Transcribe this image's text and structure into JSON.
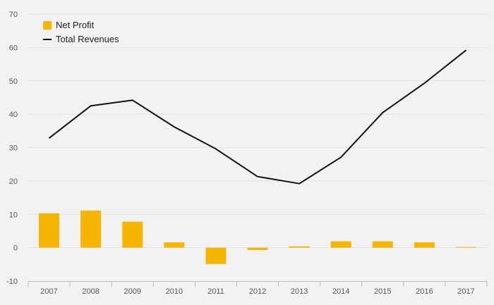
{
  "chart_data": {
    "type": "bar+line",
    "categories": [
      "2007",
      "2008",
      "2009",
      "2010",
      "2011",
      "2012",
      "2013",
      "2014",
      "2015",
      "2016",
      "2017"
    ],
    "series": [
      {
        "name": "Net Profit",
        "kind": "bar",
        "color": "#f7b500",
        "values": [
          10.3,
          11.1,
          7.8,
          1.6,
          -4.9,
          -0.7,
          0.4,
          1.9,
          1.9,
          1.6,
          0.2
        ]
      },
      {
        "name": "Total Revenues",
        "kind": "line",
        "color": "#111111",
        "values": [
          32.8,
          42.5,
          44.2,
          36.2,
          29.6,
          21.3,
          19.2,
          27.1,
          40.5,
          49.3,
          59.2
        ]
      }
    ],
    "y_ticks": [
      "-10",
      "0",
      "10",
      "20",
      "30",
      "40",
      "50",
      "60",
      "70"
    ],
    "ylim": [
      -10,
      70
    ],
    "grid": true,
    "legend_position": "top-left"
  }
}
